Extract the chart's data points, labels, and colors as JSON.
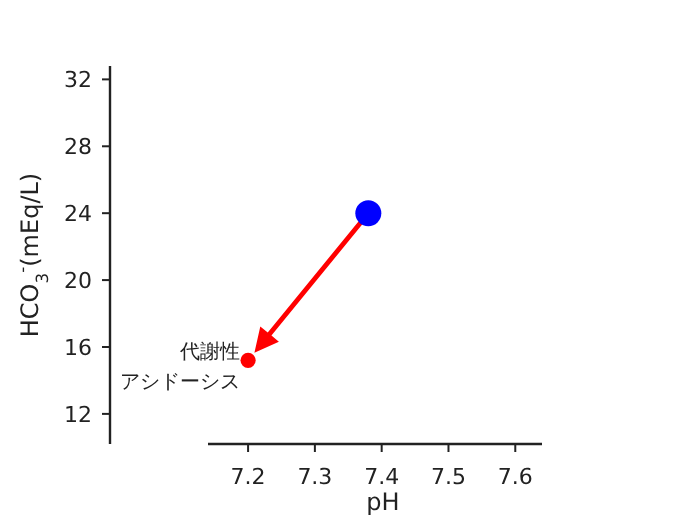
{
  "chart_data": {
    "type": "bubble",
    "xlabel": "pH",
    "ylabel": "HCO$_{3}$$^{-}$(mEq/L)",
    "x": [
      7.38,
      7.2
    ],
    "values": [
      24,
      15.2
    ],
    "sizes": [
      1,
      0.34
    ],
    "colors": [
      "#0000ff",
      "#ff0000"
    ],
    "xlim": [
      7.14,
      7.64
    ],
    "ylim": [
      10.2,
      32.8
    ],
    "xticks": [
      7.2,
      7.3,
      7.4,
      7.5,
      7.6
    ],
    "yticks": [
      12,
      16,
      20,
      24,
      28,
      32
    ],
    "annotations": [
      {
        "text": "代謝性",
        "x": 7.2,
        "y": 15.2
      },
      {
        "text": "アシドーシス",
        "x": 7.2,
        "y": 15.2
      }
    ]
  }
}
